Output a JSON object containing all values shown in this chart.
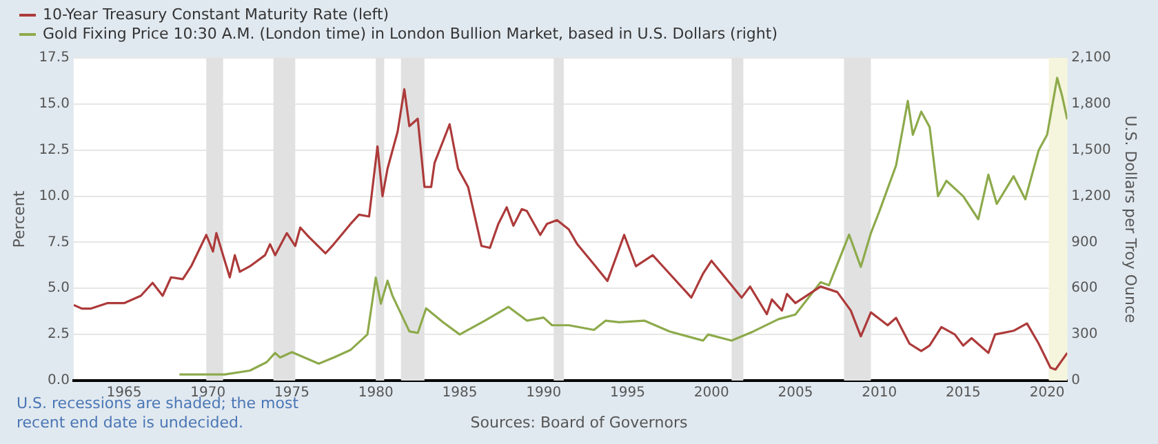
{
  "chart_data": {
    "type": "line",
    "ylabel": "Percent",
    "y2label": "U.S. Dollars per Troy Ounce",
    "series": [
      {
        "name": "10-Year Treasury Constant Maturity Rate (left)",
        "color": "#ad3a3a",
        "axis": "y",
        "x": [
          1962.0,
          1962.5,
          1963,
          1964,
          1965,
          1966,
          1966.7,
          1967.3,
          1967.8,
          1968.5,
          1969,
          1969.9,
          1970.3,
          1970.5,
          1971.0,
          1971.3,
          1971.6,
          1971.9,
          1972.5,
          1973.4,
          1973.7,
          1974.0,
          1974.7,
          1975.2,
          1975.5,
          1976,
          1977.0,
          1977.5,
          1978.5,
          1979,
          1979.6,
          1980.1,
          1980.4,
          1980.7,
          1981.0,
          1981.3,
          1981.7,
          1982.0,
          1982.5,
          1982.9,
          1983.3,
          1983.5,
          1984.4,
          1984.9,
          1985.5,
          1986.3,
          1986.8,
          1987.3,
          1987.8,
          1988.2,
          1988.7,
          1989.0,
          1989.8,
          1990.2,
          1990.8,
          1991.5,
          1992,
          1993,
          1993.8,
          1994.8,
          1995.5,
          1996.5,
          1997,
          1998.8,
          1999.5,
          2000.0,
          2000.9,
          2001.8,
          2002.3,
          2003.3,
          2003.6,
          2004.2,
          2004.5,
          2005,
          2006.5,
          2007.5,
          2008.3,
          2008.9,
          2009.5,
          2010.5,
          2011.0,
          2011.8,
          2012.5,
          2013.0,
          2013.7,
          2014.5,
          2015.0,
          2015.5,
          2016.5,
          2016.9,
          2018.0,
          2018.8,
          2019.5,
          2020.2,
          2020.5,
          2021.2
        ],
        "values": [
          4.1,
          3.9,
          3.9,
          4.2,
          4.2,
          4.6,
          5.3,
          4.6,
          5.6,
          5.5,
          6.2,
          7.9,
          7.0,
          8.0,
          6.5,
          5.6,
          6.8,
          5.9,
          6.2,
          6.8,
          7.4,
          6.8,
          8.0,
          7.3,
          8.3,
          7.8,
          6.9,
          7.4,
          8.5,
          9.0,
          8.9,
          12.7,
          10.0,
          11.5,
          12.5,
          13.5,
          15.8,
          13.8,
          14.2,
          10.5,
          10.5,
          11.8,
          13.9,
          11.5,
          10.5,
          7.3,
          7.2,
          8.5,
          9.4,
          8.4,
          9.3,
          9.2,
          7.9,
          8.5,
          8.7,
          8.2,
          7.4,
          6.3,
          5.4,
          7.9,
          6.2,
          6.8,
          6.3,
          4.5,
          5.8,
          6.5,
          5.5,
          4.5,
          5.1,
          3.6,
          4.4,
          3.8,
          4.7,
          4.2,
          5.1,
          4.8,
          3.8,
          2.4,
          3.7,
          3.0,
          3.4,
          2.0,
          1.6,
          1.9,
          2.9,
          2.5,
          1.9,
          2.3,
          1.5,
          2.5,
          2.7,
          3.1,
          2.0,
          0.7,
          0.6,
          1.5
        ]
      },
      {
        "name": "Gold Fixing Price 10:30 A.M. (London time) in London Bullion Market, based in U.S. Dollars (right)",
        "color": "#8daa4b",
        "axis": "y2",
        "x": [
          1968.3,
          1971,
          1972.5,
          1973.5,
          1974.0,
          1974.3,
          1975.0,
          1976.6,
          1977.5,
          1978.5,
          1979.5,
          1980.0,
          1980.3,
          1980.7,
          1981.0,
          1982.0,
          1982.5,
          1983.0,
          1984.0,
          1985.0,
          1986.5,
          1987.9,
          1989.0,
          1990.0,
          1990.5,
          1991.5,
          1993.0,
          1993.7,
          1994.5,
          1996.0,
          1997.5,
          1999.5,
          1999.8,
          2001.2,
          2002.5,
          2004.0,
          2005.0,
          2006.5,
          2007.0,
          2008.2,
          2008.9,
          2009.5,
          2010.0,
          2011.0,
          2011.7,
          2012.0,
          2012.5,
          2013.0,
          2013.5,
          2014.0,
          2015.0,
          2015.9,
          2016.5,
          2017.0,
          2018.0,
          2018.7,
          2019.5,
          2020.0,
          2020.6,
          2020.9,
          2021.2
        ],
        "values": [
          40,
          40,
          65,
          120,
          180,
          150,
          185,
          110,
          150,
          200,
          300,
          670,
          500,
          650,
          550,
          320,
          310,
          470,
          380,
          300,
          390,
          480,
          390,
          410,
          360,
          360,
          330,
          390,
          380,
          390,
          320,
          260,
          300,
          260,
          320,
          400,
          430,
          640,
          620,
          950,
          740,
          960,
          1100,
          1400,
          1820,
          1600,
          1750,
          1650,
          1200,
          1300,
          1200,
          1050,
          1340,
          1150,
          1330,
          1180,
          1500,
          1600,
          1970,
          1850,
          1700
        ]
      }
    ],
    "xlim": [
      1962,
      2021.2
    ],
    "xticks": [
      1965,
      1970,
      1975,
      1980,
      1985,
      1990,
      1995,
      2000,
      2005,
      2010,
      2015,
      2020
    ],
    "ylim": [
      0,
      17.5
    ],
    "yticks": [
      {
        "value": 0,
        "label": "0.0"
      },
      {
        "value": 2.5,
        "label": "2.5"
      },
      {
        "value": 5,
        "label": "5.0"
      },
      {
        "value": 7.5,
        "label": "7.5"
      },
      {
        "value": 10,
        "label": "10.0"
      },
      {
        "value": 12.5,
        "label": "12.5"
      },
      {
        "value": 15,
        "label": "15.0"
      },
      {
        "value": 17.5,
        "label": "17.5"
      }
    ],
    "y2lim": [
      0,
      2100
    ],
    "y2ticks": [
      0,
      300,
      600,
      900,
      {
        "value": 1200,
        "label": "1,200"
      },
      {
        "value": 1500,
        "label": "1,500"
      },
      {
        "value": 1800,
        "label": "1,800"
      },
      {
        "value": 2100,
        "label": "2,100"
      }
    ],
    "bands": [
      {
        "axis": "x",
        "from": 1969.9,
        "to": 1970.9,
        "color": "#e1e1e1"
      },
      {
        "axis": "x",
        "from": 1973.9,
        "to": 1975.2,
        "color": "#e1e1e1"
      },
      {
        "axis": "x",
        "from": 1980.0,
        "to": 1980.5,
        "color": "#e1e1e1"
      },
      {
        "axis": "x",
        "from": 1981.5,
        "to": 1982.9,
        "color": "#e1e1e1"
      },
      {
        "axis": "x",
        "from": 1990.6,
        "to": 1991.2,
        "color": "#e1e1e1"
      },
      {
        "axis": "x",
        "from": 2001.2,
        "to": 2001.9,
        "color": "#e1e1e1"
      },
      {
        "axis": "x",
        "from": 2007.9,
        "to": 2009.5,
        "color": "#e1e1e1"
      },
      {
        "axis": "x",
        "from": 2020.1,
        "to": 2021.2,
        "color": "#f5f4dc"
      }
    ],
    "grid": "y",
    "legend": "top left",
    "marker": "none",
    "line_style": "solid",
    "annotations": [
      "U.S. recessions are shaded; the most recent end date is undecided.",
      "Sources: Board of Governors"
    ]
  }
}
